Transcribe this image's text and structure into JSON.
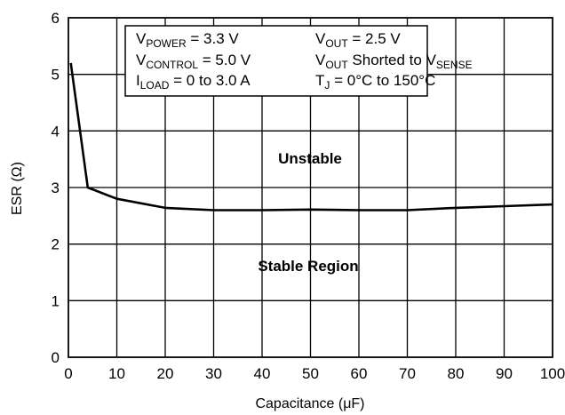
{
  "chart_data": {
    "type": "line",
    "title": "",
    "xlabel": "Capacitance (μF)",
    "ylabel": "ESR (Ω)",
    "xlim": [
      0,
      100
    ],
    "ylim": [
      0,
      6
    ],
    "x_ticks": [
      0,
      10,
      20,
      30,
      40,
      50,
      60,
      70,
      80,
      90,
      100
    ],
    "y_ticks": [
      0,
      1,
      2,
      3,
      4,
      5,
      6
    ],
    "grid": true,
    "series": [
      {
        "color": "#000000",
        "x": [
          0.5,
          4,
          10,
          20,
          30,
          40,
          50,
          60,
          70,
          80,
          90,
          100
        ],
        "y": [
          5.2,
          3.0,
          2.8,
          2.64,
          2.6,
          2.6,
          2.61,
          2.6,
          2.6,
          2.64,
          2.67,
          2.7
        ]
      }
    ],
    "annotations": {
      "unstable": "Unstable",
      "stable": "Stable Region"
    },
    "legend_box": {
      "line1_left": {
        "main": "V",
        "sub": "POWER",
        "rest": " = 3.3 V"
      },
      "line1_right": {
        "main": "V",
        "sub": "OUT",
        "rest": " = 2.5 V"
      },
      "line2_left": {
        "main": "V",
        "sub": "CONTROL",
        "rest": " = 5.0 V"
      },
      "line2_right": {
        "main": "V",
        "sub": "OUT",
        "rest": " Shorted to V",
        "sub2": "SENSE"
      },
      "line3_left": {
        "main": "I",
        "sub": "LOAD",
        "rest": " = 0 to 3.0 A"
      },
      "line3_right": {
        "main": "T",
        "sub": "J",
        "rest": " = 0°C to 150°C"
      }
    }
  }
}
